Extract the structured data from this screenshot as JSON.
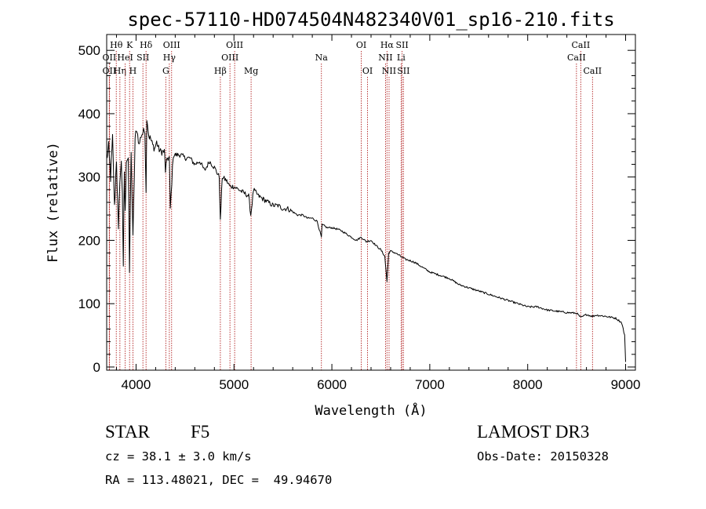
{
  "chart_data": {
    "type": "line",
    "title": "spec-57110-HD074504N482340V01_sp16-210.fits",
    "xlabel": "Wavelength (Å)",
    "ylabel": "Flux (relative)",
    "xlim": [
      3700,
      9100
    ],
    "ylim": [
      -5,
      525
    ],
    "x_ticks": [
      4000,
      5000,
      6000,
      7000,
      8000,
      9000
    ],
    "y_ticks": [
      0,
      100,
      200,
      300,
      400,
      500
    ],
    "line_color": "#000000",
    "marker_color": "#b22222",
    "series": [
      {
        "name": "flux",
        "x": [
          3700,
          3720,
          3740,
          3760,
          3780,
          3800,
          3820,
          3835,
          3850,
          3860,
          3870,
          3880,
          3889,
          3900,
          3920,
          3933,
          3950,
          3968,
          3990,
          4010,
          4030,
          4050,
          4070,
          4090,
          4102,
          4110,
          4130,
          4150,
          4170,
          4190,
          4210,
          4230,
          4250,
          4270,
          4290,
          4300,
          4320,
          4340,
          4350,
          4380,
          4420,
          4460,
          4500,
          4550,
          4600,
          4650,
          4700,
          4750,
          4800,
          4850,
          4861,
          4880,
          4920,
          4960,
          5000,
          5050,
          5100,
          5150,
          5172,
          5200,
          5250,
          5300,
          5350,
          5400,
          5450,
          5500,
          5550,
          5600,
          5650,
          5700,
          5750,
          5800,
          5850,
          5893,
          5900,
          5950,
          6000,
          6050,
          6100,
          6150,
          6200,
          6250,
          6300,
          6350,
          6400,
          6450,
          6500,
          6540,
          6563,
          6580,
          6600,
          6650,
          6700,
          6750,
          6800,
          6850,
          6900,
          7000,
          7100,
          7200,
          7300,
          7400,
          7500,
          7600,
          7700,
          7800,
          7900,
          8000,
          8100,
          8200,
          8300,
          8400,
          8500,
          8542,
          8600,
          8662,
          8700,
          8800,
          8900,
          8960,
          8990,
          9000
        ],
        "y": [
          330,
          345,
          300,
          360,
          250,
          330,
          210,
          300,
          320,
          280,
          150,
          310,
          240,
          330,
          330,
          150,
          345,
          200,
          360,
          375,
          350,
          365,
          370,
          375,
          280,
          395,
          365,
          360,
          350,
          345,
          355,
          345,
          340,
          340,
          340,
          310,
          330,
          330,
          250,
          335,
          335,
          335,
          330,
          330,
          320,
          325,
          310,
          325,
          315,
          300,
          230,
          300,
          295,
          285,
          285,
          280,
          275,
          270,
          240,
          280,
          270,
          265,
          260,
          255,
          255,
          250,
          250,
          245,
          240,
          240,
          235,
          235,
          230,
          205,
          225,
          220,
          220,
          218,
          215,
          210,
          205,
          200,
          205,
          198,
          200,
          192,
          185,
          175,
          135,
          180,
          183,
          180,
          175,
          170,
          168,
          165,
          160,
          150,
          145,
          140,
          130,
          125,
          120,
          115,
          110,
          105,
          100,
          95,
          95,
          90,
          88,
          86,
          85,
          78,
          83,
          80,
          82,
          80,
          77,
          70,
          50,
          8
        ]
      }
    ],
    "lines": [
      {
        "name": "OII",
        "wl": 3727,
        "row": 2
      },
      {
        "name": "OII",
        "wl": 3727,
        "row": 3
      },
      {
        "name": "Hθ",
        "wl": 3798,
        "row": 1
      },
      {
        "name": "Hη",
        "wl": 3835,
        "row": 3
      },
      {
        "name": "HeI",
        "wl": 3889,
        "row": 2
      },
      {
        "name": "K",
        "wl": 3934,
        "row": 1
      },
      {
        "name": "SII",
        "wl": 4070,
        "row": 2
      },
      {
        "name": "H",
        "wl": 3968,
        "row": 3
      },
      {
        "name": "Hδ",
        "wl": 4102,
        "row": 1
      },
      {
        "name": "OIII",
        "wl": 4363,
        "row": 1
      },
      {
        "name": "Hγ",
        "wl": 4340,
        "row": 2
      },
      {
        "name": "G",
        "wl": 4304,
        "row": 3
      },
      {
        "name": "Hβ",
        "wl": 4861,
        "row": 3
      },
      {
        "name": "OIII",
        "wl": 5007,
        "row": 1
      },
      {
        "name": "OIII",
        "wl": 4959,
        "row": 2
      },
      {
        "name": "Mg",
        "wl": 5175,
        "row": 3
      },
      {
        "name": "Na",
        "wl": 5893,
        "row": 2
      },
      {
        "name": "OI",
        "wl": 6300,
        "row": 1
      },
      {
        "name": "OI",
        "wl": 6364,
        "row": 3
      },
      {
        "name": "Hα",
        "wl": 6563,
        "row": 1
      },
      {
        "name": "NII",
        "wl": 6548,
        "row": 2
      },
      {
        "name": "NII",
        "wl": 6584,
        "row": 3
      },
      {
        "name": "SII",
        "wl": 6717,
        "row": 1
      },
      {
        "name": "Li",
        "wl": 6707,
        "row": 2
      },
      {
        "name": "SII",
        "wl": 6731,
        "row": 3
      },
      {
        "name": "CaII",
        "wl": 8542,
        "row": 1
      },
      {
        "name": "CaII",
        "wl": 8498,
        "row": 2
      },
      {
        "name": "CaII",
        "wl": 8662,
        "row": 3
      }
    ]
  },
  "info": {
    "object_class": "STAR",
    "subclass": "F5",
    "survey": "LAMOST DR3",
    "redshift": "cz = 38.1 ± 3.0 km/s",
    "obs_date": "Obs-Date: 20150328",
    "coords": "RA = 113.48021, DEC =  49.94670"
  }
}
